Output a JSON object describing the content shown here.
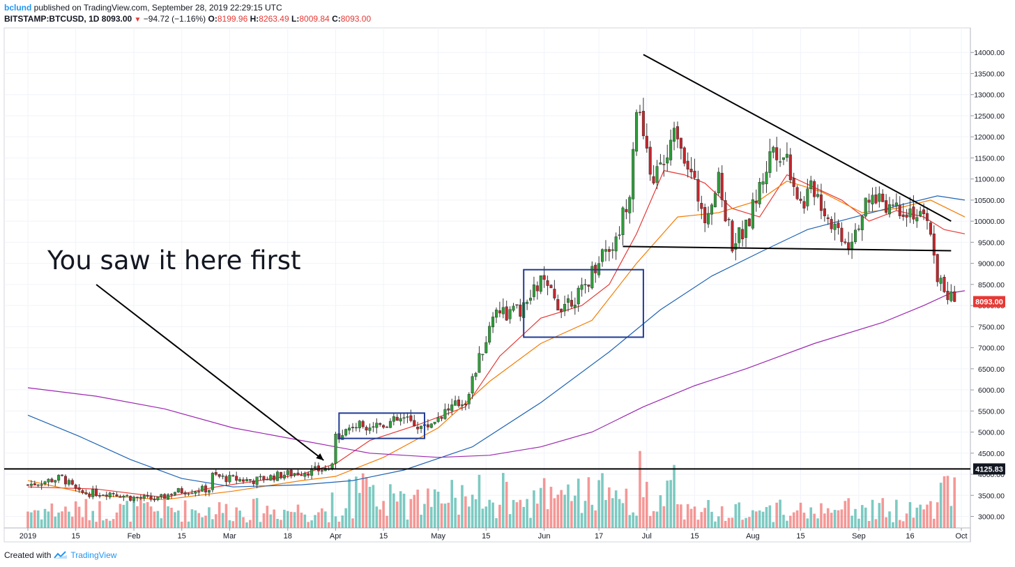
{
  "header": {
    "author": "bclund",
    "published": "published on TradingView.com, September 28, 2019 22:29:15 UTC",
    "symbol": "BITSTAMP:BTCUSD, 1D",
    "last": "8093.00",
    "change": "−94.72 (−1.16%)",
    "open_label": "O:",
    "open": "8199.96",
    "high_label": "H:",
    "high": "8263.49",
    "low_label": "L:",
    "low": "8009.84",
    "close_label": "C:",
    "close": "8093.00"
  },
  "footer": {
    "created_with": "Created with",
    "brand": "TradingView",
    "logo_icon": "tradingview-logo-icon"
  },
  "annotation": {
    "text": "You saw it here first"
  },
  "price_tags": {
    "last": "8093.00",
    "support": "4125.83"
  },
  "colors": {
    "up": "#26a69a",
    "down": "#ef5350",
    "candle_up": "#2e9d3a",
    "candle_down": "#c1272d",
    "ma_red": "#e53935",
    "ma_orange": "#f57c00",
    "ma_blue": "#1e63b4",
    "ma_purple": "#9c27b0",
    "box": "#1f3a93",
    "line": "#000000",
    "last_tag": "#e53935"
  },
  "chart_data": {
    "type": "candlestick",
    "symbol": "BITSTAMP:BTCUSD",
    "interval": "1D",
    "yrange": [
      2750,
      14300
    ],
    "y_ticks": [
      3000,
      3500,
      4000,
      4500,
      5000,
      5500,
      6000,
      6500,
      7000,
      7500,
      8000,
      8500,
      9000,
      9500,
      10000,
      10500,
      11000,
      11500,
      12000,
      12500,
      13000,
      13500,
      14000
    ],
    "y_tick_labels": [
      "3000.00",
      "3500.00",
      "4000.00",
      "4500.00",
      "5000.00",
      "5500.00",
      "6000.00",
      "6500.00",
      "7000.00",
      "7500.00",
      "8000.00",
      "8500.00",
      "9000.00",
      "9500.00",
      "10000.00",
      "10500.00",
      "11000.00",
      "11500.00",
      "12000.00",
      "12500.00",
      "13000.00",
      "13500.00",
      "14000.00"
    ],
    "x_ticks": [
      {
        "label": "2019",
        "day": 0
      },
      {
        "label": "15",
        "day": 14
      },
      {
        "label": "Feb",
        "day": 31
      },
      {
        "label": "15",
        "day": 45
      },
      {
        "label": "Mar",
        "day": 59
      },
      {
        "label": "18",
        "day": 76
      },
      {
        "label": "Apr",
        "day": 90
      },
      {
        "label": "15",
        "day": 104
      },
      {
        "label": "May",
        "day": 120
      },
      {
        "label": "15",
        "day": 134
      },
      {
        "label": "Jun",
        "day": 151
      },
      {
        "label": "17",
        "day": 167
      },
      {
        "label": "Jul",
        "day": 181
      },
      {
        "label": "15",
        "day": 195
      },
      {
        "label": "Aug",
        "day": 212
      },
      {
        "label": "15",
        "day": 226
      },
      {
        "label": "Sep",
        "day": 243
      },
      {
        "label": "16",
        "day": 258
      },
      {
        "label": "Oct",
        "day": 273
      }
    ],
    "price_path": [
      [
        0,
        3750
      ],
      [
        10,
        3920
      ],
      [
        15,
        3550
      ],
      [
        25,
        3560
      ],
      [
        30,
        3450
      ],
      [
        38,
        3400
      ],
      [
        43,
        3590
      ],
      [
        53,
        3650
      ],
      [
        54,
        3970
      ],
      [
        58,
        3900
      ],
      [
        66,
        3850
      ],
      [
        75,
        4000
      ],
      [
        85,
        4100
      ],
      [
        89,
        4150
      ],
      [
        90,
        4900
      ],
      [
        95,
        5150
      ],
      [
        104,
        5200
      ],
      [
        110,
        5300
      ],
      [
        116,
        5100
      ],
      [
        122,
        5500
      ],
      [
        128,
        5750
      ],
      [
        134,
        7200
      ],
      [
        137,
        8000
      ],
      [
        140,
        7800
      ],
      [
        145,
        7900
      ],
      [
        150,
        8600
      ],
      [
        155,
        8000
      ],
      [
        162,
        8300
      ],
      [
        168,
        9300
      ],
      [
        172,
        9500
      ],
      [
        176,
        10800
      ],
      [
        178,
        12800
      ],
      [
        182,
        11000
      ],
      [
        186,
        11300
      ],
      [
        190,
        12200
      ],
      [
        195,
        10800
      ],
      [
        198,
        10200
      ],
      [
        202,
        10900
      ],
      [
        206,
        9500
      ],
      [
        210,
        9800
      ],
      [
        214,
        10800
      ],
      [
        218,
        11800
      ],
      [
        222,
        11500
      ],
      [
        226,
        10400
      ],
      [
        230,
        10800
      ],
      [
        234,
        10100
      ],
      [
        240,
        9500
      ],
      [
        244,
        10200
      ],
      [
        248,
        10600
      ],
      [
        252,
        10400
      ],
      [
        258,
        10300
      ],
      [
        264,
        9800
      ],
      [
        266,
        8700
      ],
      [
        269,
        8200
      ],
      [
        271,
        8093
      ]
    ],
    "moving_averages": [
      {
        "color_key": "ma_red",
        "values": [
          [
            0,
            3700
          ],
          [
            20,
            3650
          ],
          [
            40,
            3450
          ],
          [
            55,
            3700
          ],
          [
            80,
            4000
          ],
          [
            90,
            4250
          ],
          [
            100,
            4800
          ],
          [
            115,
            5200
          ],
          [
            128,
            5600
          ],
          [
            138,
            6800
          ],
          [
            150,
            7700
          ],
          [
            162,
            8000
          ],
          [
            170,
            8500
          ],
          [
            178,
            9700
          ],
          [
            186,
            11200
          ],
          [
            192,
            11100
          ],
          [
            198,
            10900
          ],
          [
            206,
            10300
          ],
          [
            214,
            10100
          ],
          [
            222,
            11100
          ],
          [
            230,
            10800
          ],
          [
            238,
            10500
          ],
          [
            246,
            10000
          ],
          [
            254,
            10250
          ],
          [
            262,
            10100
          ],
          [
            268,
            9800
          ],
          [
            274,
            9700
          ]
        ]
      },
      {
        "color_key": "ma_orange",
        "values": [
          [
            0,
            3850
          ],
          [
            20,
            3500
          ],
          [
            40,
            3400
          ],
          [
            60,
            3600
          ],
          [
            80,
            3850
          ],
          [
            90,
            3950
          ],
          [
            104,
            4400
          ],
          [
            120,
            5100
          ],
          [
            135,
            6200
          ],
          [
            150,
            7100
          ],
          [
            165,
            7650
          ],
          [
            178,
            9000
          ],
          [
            190,
            10100
          ],
          [
            202,
            10200
          ],
          [
            214,
            10500
          ],
          [
            222,
            10950
          ],
          [
            232,
            10700
          ],
          [
            244,
            10200
          ],
          [
            254,
            10300
          ],
          [
            264,
            10500
          ],
          [
            274,
            10100
          ]
        ]
      },
      {
        "color_key": "ma_blue",
        "values": [
          [
            0,
            5400
          ],
          [
            15,
            4900
          ],
          [
            30,
            4350
          ],
          [
            45,
            3900
          ],
          [
            60,
            3700
          ],
          [
            80,
            3750
          ],
          [
            95,
            3850
          ],
          [
            110,
            4100
          ],
          [
            130,
            4650
          ],
          [
            150,
            5700
          ],
          [
            170,
            6900
          ],
          [
            185,
            7900
          ],
          [
            200,
            8700
          ],
          [
            215,
            9300
          ],
          [
            228,
            9800
          ],
          [
            242,
            10100
          ],
          [
            256,
            10400
          ],
          [
            266,
            10600
          ],
          [
            274,
            10500
          ]
        ]
      },
      {
        "color_key": "ma_purple",
        "values": [
          [
            0,
            6050
          ],
          [
            20,
            5850
          ],
          [
            40,
            5550
          ],
          [
            60,
            5100
          ],
          [
            80,
            4800
          ],
          [
            100,
            4500
          ],
          [
            120,
            4400
          ],
          [
            135,
            4450
          ],
          [
            150,
            4650
          ],
          [
            165,
            5000
          ],
          [
            180,
            5600
          ],
          [
            195,
            6100
          ],
          [
            210,
            6500
          ],
          [
            230,
            7100
          ],
          [
            250,
            7600
          ],
          [
            262,
            8000
          ],
          [
            270,
            8300
          ],
          [
            274,
            8350
          ]
        ]
      }
    ],
    "drawings": {
      "horizontal_support": 4125.83,
      "annotation_arrow": [
        [
          3.97,
          3.22
        ],
        [
          107.24,
          8.75
        ]
      ],
      "triangle_upper": [
        [
          180,
          13950
        ],
        [
          270,
          10000
        ]
      ],
      "triangle_lower": [
        [
          174,
          9400
        ],
        [
          270,
          9300
        ]
      ],
      "boxes": [
        {
          "x0": 91,
          "x1": 116,
          "y0": 4850,
          "y1": 5450
        },
        {
          "x0": 145,
          "x1": 180,
          "y0": 7250,
          "y1": 8850
        }
      ]
    }
  }
}
